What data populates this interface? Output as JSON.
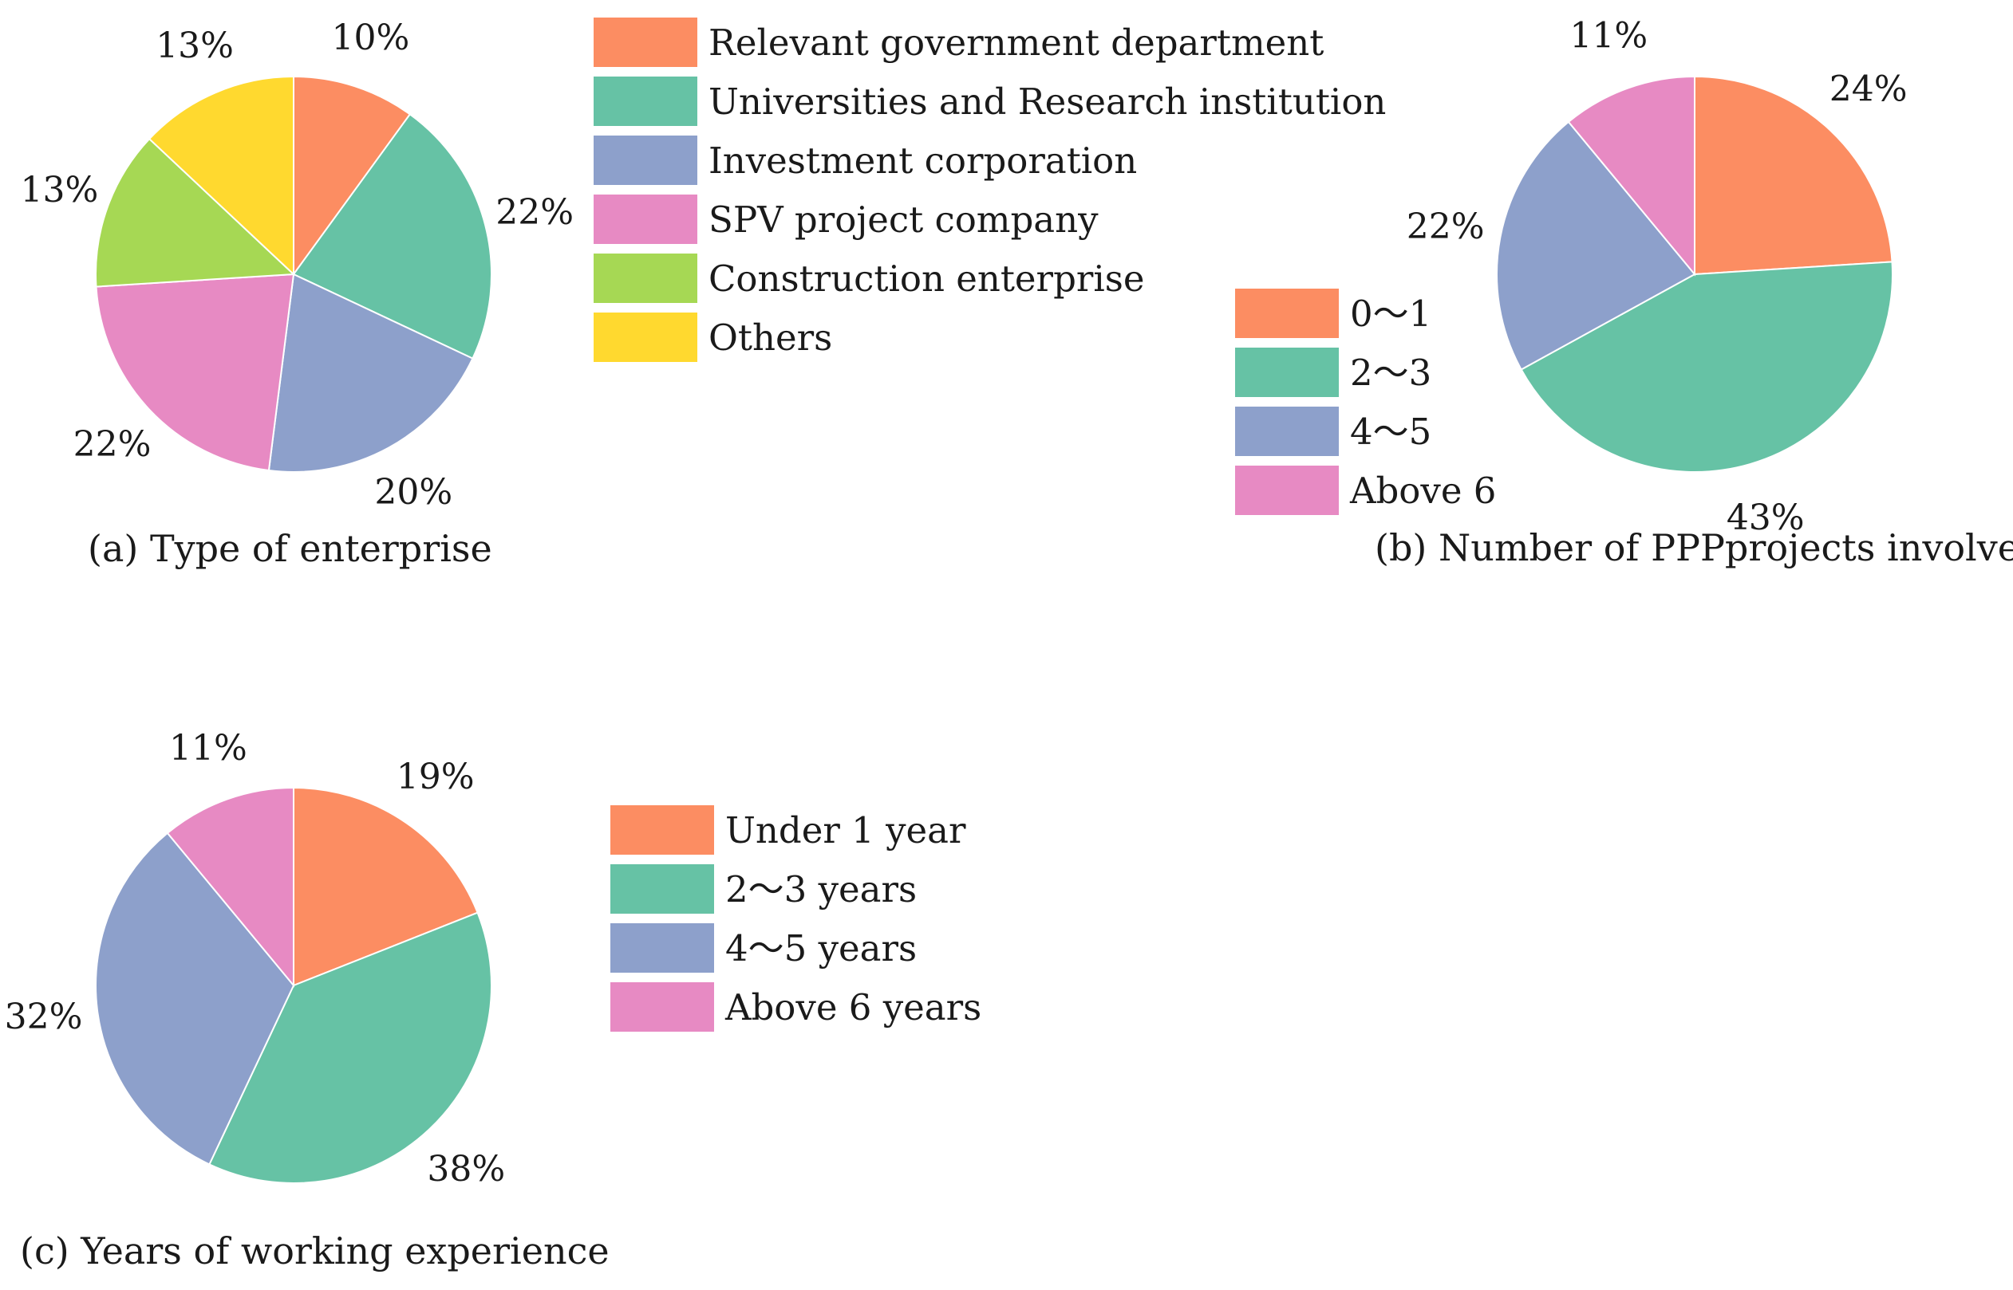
{
  "colors": {
    "orange": "#FC8D62",
    "green": "#66C2A5",
    "blue": "#8DA0CB",
    "pink": "#E78AC3",
    "lime": "#A6D854",
    "yellow": "#FFD92F",
    "border": "#ffffff"
  },
  "chart_data": [
    {
      "id": "a",
      "type": "pie",
      "title": "(a) Type of enterprise",
      "start_angle_deg": 0,
      "direction": "clockwise",
      "categories": [
        "Relevant government department",
        "Universities and Research institution",
        "Investment corporation",
        "SPV project company",
        "Construction enterprise",
        "Others"
      ],
      "values": [
        10,
        22,
        20,
        22,
        13,
        13
      ],
      "labels": [
        "10%",
        "22%",
        "20%",
        "22%",
        "13%",
        "13%"
      ],
      "colors": [
        "#FC8D62",
        "#66C2A5",
        "#8DA0CB",
        "#E78AC3",
        "#A6D854",
        "#FFD92F"
      ]
    },
    {
      "id": "b",
      "type": "pie",
      "title": "(b) Number of PPPprojects involved",
      "start_angle_deg": 0,
      "direction": "clockwise",
      "categories": [
        "0～1",
        "2～3",
        "4～5",
        "Above 6"
      ],
      "values": [
        24,
        43,
        22,
        11
      ],
      "labels": [
        "24%",
        "43%",
        "22%",
        "11%"
      ],
      "colors": [
        "#FC8D62",
        "#66C2A5",
        "#8DA0CB",
        "#E78AC3"
      ]
    },
    {
      "id": "c",
      "type": "pie",
      "title": "(c) Years of working experience",
      "start_angle_deg": 0,
      "direction": "clockwise",
      "categories": [
        "Under 1 year",
        "2～3 years",
        "4～5 years",
        "Above 6 years"
      ],
      "values": [
        19,
        38,
        32,
        11
      ],
      "labels": [
        "19%",
        "38%",
        "32%",
        "11%"
      ],
      "colors": [
        "#FC8D62",
        "#66C2A5",
        "#8DA0CB",
        "#E78AC3"
      ]
    }
  ]
}
